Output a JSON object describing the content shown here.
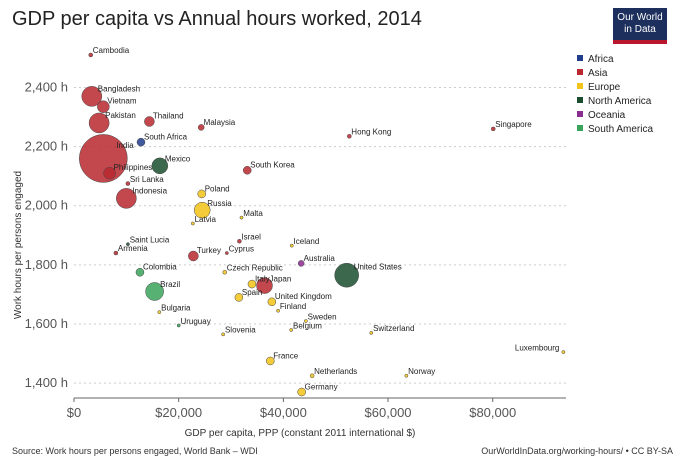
{
  "header": {
    "title": "GDP per capita vs Annual hours worked, 2014",
    "logo_line1": "Our World",
    "logo_line2": "in Data"
  },
  "footer": {
    "source": "Source: Work hours per persons engaged, World Bank – WDI",
    "url": "OurWorldInData.org/working-hours/ • CC BY-SA"
  },
  "chart_data": {
    "type": "scatter",
    "title": "GDP per capita vs Annual hours worked, 2014",
    "xlabel": "GDP per capita, PPP (constant 2011 international $)",
    "ylabel": "Work hours per persons engaged",
    "xlim": [
      0,
      94000
    ],
    "ylim": [
      1370,
      2520
    ],
    "x_ticks": [
      0,
      20000,
      40000,
      60000,
      80000
    ],
    "x_tick_labels": [
      "$0",
      "$20,000",
      "$40,000",
      "$60,000",
      "$80,000"
    ],
    "y_ticks": [
      1400,
      1600,
      1800,
      2000,
      2200,
      2400
    ],
    "y_tick_labels": [
      "1,400 h",
      "1,600 h",
      "1,800 h",
      "2,000 h",
      "2,200 h",
      "2,400 h"
    ],
    "grid": "horizontal dotted",
    "legend_position": "top-right",
    "legend": [
      {
        "name": "Africa",
        "color": "#1f3d8c"
      },
      {
        "name": "Asia",
        "color": "#b9282f"
      },
      {
        "name": "Europe",
        "color": "#f2c318"
      },
      {
        "name": "North America",
        "color": "#1a4d2e"
      },
      {
        "name": "Oceania",
        "color": "#8b2c8f"
      },
      {
        "name": "South America",
        "color": "#3aa35a"
      }
    ],
    "points": [
      {
        "label": "Cambodia",
        "x": 3200,
        "y": 2510,
        "region": "Asia",
        "size": 2
      },
      {
        "label": "Bangladesh",
        "x": 3400,
        "y": 2370,
        "region": "Asia",
        "size": 10
      },
      {
        "label": "Vietnam",
        "x": 5600,
        "y": 2335,
        "region": "Asia",
        "size": 6
      },
      {
        "label": "Pakistan",
        "x": 4800,
        "y": 2280,
        "region": "Asia",
        "size": 10
      },
      {
        "label": "Thailand",
        "x": 14400,
        "y": 2285,
        "region": "Asia",
        "size": 5
      },
      {
        "label": "Malaysia",
        "x": 24300,
        "y": 2265,
        "region": "Asia",
        "size": 3
      },
      {
        "label": "India",
        "x": 5600,
        "y": 2160,
        "region": "Asia",
        "size": 24
      },
      {
        "label": "South Africa",
        "x": 12800,
        "y": 2215,
        "region": "Africa",
        "size": 4
      },
      {
        "label": "Philippines",
        "x": 6800,
        "y": 2110,
        "region": "Asia",
        "size": 6
      },
      {
        "label": "Mexico",
        "x": 16400,
        "y": 2135,
        "region": "North America",
        "size": 8
      },
      {
        "label": "South Korea",
        "x": 33100,
        "y": 2120,
        "region": "Asia",
        "size": 4
      },
      {
        "label": "Sri Lanka",
        "x": 10300,
        "y": 2075,
        "region": "Asia",
        "size": 2
      },
      {
        "label": "Indonesia",
        "x": 10000,
        "y": 2025,
        "region": "Asia",
        "size": 10
      },
      {
        "label": "Hong Kong",
        "x": 52600,
        "y": 2235,
        "region": "Asia",
        "size": 2
      },
      {
        "label": "Singapore",
        "x": 80100,
        "y": 2260,
        "region": "Asia",
        "size": 2
      },
      {
        "label": "Poland",
        "x": 24400,
        "y": 2040,
        "region": "Europe",
        "size": 4
      },
      {
        "label": "Russia",
        "x": 24500,
        "y": 1985,
        "region": "Europe",
        "size": 8
      },
      {
        "label": "Malta",
        "x": 32000,
        "y": 1960,
        "region": "Europe",
        "size": 1
      },
      {
        "label": "Latvia",
        "x": 22700,
        "y": 1940,
        "region": "Europe",
        "size": 1
      },
      {
        "label": "Israel",
        "x": 31600,
        "y": 1880,
        "region": "Asia",
        "size": 2
      },
      {
        "label": "Iceland",
        "x": 41600,
        "y": 1865,
        "region": "Europe",
        "size": 1
      },
      {
        "label": "Saint Lucia",
        "x": 10300,
        "y": 1870,
        "region": "North America",
        "size": 1
      },
      {
        "label": "Armenia",
        "x": 8000,
        "y": 1840,
        "region": "Asia",
        "size": 2
      },
      {
        "label": "Turkey",
        "x": 22800,
        "y": 1830,
        "region": "Asia",
        "size": 5
      },
      {
        "label": "Cyprus",
        "x": 29200,
        "y": 1840,
        "region": "Asia",
        "size": 1
      },
      {
        "label": "Australia",
        "x": 43400,
        "y": 1805,
        "region": "Oceania",
        "size": 3
      },
      {
        "label": "United States",
        "x": 52100,
        "y": 1765,
        "region": "North America",
        "size": 12
      },
      {
        "label": "Colombia",
        "x": 12600,
        "y": 1775,
        "region": "South America",
        "size": 4
      },
      {
        "label": "Czech Republic",
        "x": 28800,
        "y": 1775,
        "region": "Europe",
        "size": 2
      },
      {
        "label": "Italy",
        "x": 34000,
        "y": 1735,
        "region": "Europe",
        "size": 4
      },
      {
        "label": "Japan",
        "x": 36400,
        "y": 1730,
        "region": "Asia",
        "size": 8
      },
      {
        "label": "Brazil",
        "x": 15400,
        "y": 1710,
        "region": "South America",
        "size": 9
      },
      {
        "label": "Spain",
        "x": 31500,
        "y": 1690,
        "region": "Europe",
        "size": 4
      },
      {
        "label": "United Kingdom",
        "x": 37800,
        "y": 1675,
        "region": "Europe",
        "size": 4
      },
      {
        "label": "Finland",
        "x": 39000,
        "y": 1645,
        "region": "Europe",
        "size": 1
      },
      {
        "label": "Bulgaria",
        "x": 16300,
        "y": 1640,
        "region": "Europe",
        "size": 1
      },
      {
        "label": "Sweden",
        "x": 44300,
        "y": 1610,
        "region": "Europe",
        "size": 1
      },
      {
        "label": "Uruguay",
        "x": 20000,
        "y": 1595,
        "region": "South America",
        "size": 1
      },
      {
        "label": "Belgium",
        "x": 41500,
        "y": 1580,
        "region": "Europe",
        "size": 1
      },
      {
        "label": "Switzerland",
        "x": 56800,
        "y": 1570,
        "region": "Europe",
        "size": 1
      },
      {
        "label": "Slovenia",
        "x": 28500,
        "y": 1565,
        "region": "Europe",
        "size": 1
      },
      {
        "label": "Luxembourg",
        "x": 93500,
        "y": 1505,
        "region": "Europe",
        "size": 1
      },
      {
        "label": "France",
        "x": 37500,
        "y": 1475,
        "region": "Europe",
        "size": 4
      },
      {
        "label": "Netherlands",
        "x": 45500,
        "y": 1425,
        "region": "Europe",
        "size": 2
      },
      {
        "label": "Norway",
        "x": 63500,
        "y": 1425,
        "region": "Europe",
        "size": 1
      },
      {
        "label": "Germany",
        "x": 43500,
        "y": 1370,
        "region": "Europe",
        "size": 4
      }
    ]
  }
}
